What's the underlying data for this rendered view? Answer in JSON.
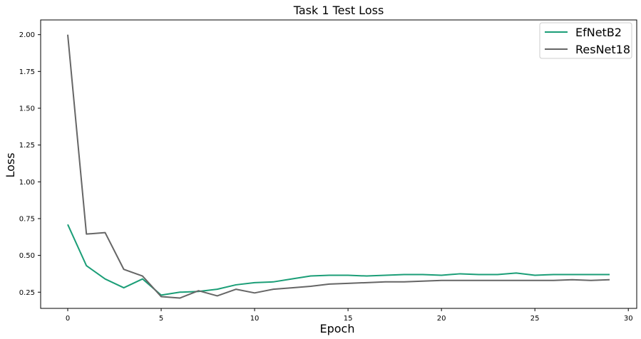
{
  "chart_data": {
    "type": "line",
    "title": "Task 1 Test Loss",
    "xlabel": "Epoch",
    "ylabel": "Loss",
    "xlim": [
      -1.45,
      30.45
    ],
    "ylim": [
      0.14,
      2.1
    ],
    "xticks": [
      0,
      5,
      10,
      15,
      20,
      25,
      30
    ],
    "xtick_labels": [
      "0",
      "5",
      "10",
      "15",
      "20",
      "25",
      "30"
    ],
    "yticks": [
      0.25,
      0.5,
      0.75,
      1.0,
      1.25,
      1.5,
      1.75,
      2.0
    ],
    "ytick_labels": [
      "0.25",
      "0.50",
      "0.75",
      "1.00",
      "1.25",
      "1.50",
      "1.75",
      "2.00"
    ],
    "grid": false,
    "legend_position": "top-right",
    "x": [
      0,
      1,
      2,
      3,
      4,
      5,
      6,
      7,
      8,
      9,
      10,
      11,
      12,
      13,
      14,
      15,
      16,
      17,
      18,
      19,
      20,
      21,
      22,
      23,
      24,
      25,
      26,
      27,
      28,
      29
    ],
    "series": [
      {
        "name": "EfNetB2",
        "color": "#1b9e77",
        "values": [
          0.71,
          0.43,
          0.34,
          0.28,
          0.34,
          0.23,
          0.25,
          0.255,
          0.27,
          0.3,
          0.315,
          0.32,
          0.34,
          0.36,
          0.365,
          0.365,
          0.36,
          0.365,
          0.37,
          0.37,
          0.365,
          0.375,
          0.37,
          0.37,
          0.38,
          0.365,
          0.37,
          0.37,
          0.37,
          0.37
        ]
      },
      {
        "name": "ResNet18",
        "color": "#666666",
        "values": [
          2.0,
          0.645,
          0.655,
          0.405,
          0.36,
          0.22,
          0.21,
          0.26,
          0.225,
          0.27,
          0.245,
          0.27,
          0.28,
          0.29,
          0.305,
          0.31,
          0.315,
          0.32,
          0.32,
          0.325,
          0.33,
          0.33,
          0.33,
          0.33,
          0.33,
          0.33,
          0.33,
          0.335,
          0.33,
          0.335
        ]
      }
    ]
  }
}
